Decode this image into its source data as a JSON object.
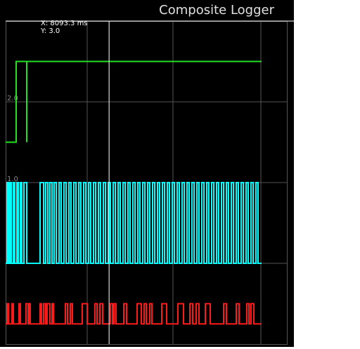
{
  "chart_data": {
    "type": "step",
    "title": "Composite Logger",
    "xlim": [
      0,
      22000
    ],
    "ylim": [
      -1,
      3
    ],
    "yticks": [
      0,
      {
        "value": 1,
        "label": "1.0"
      },
      {
        "value": 2,
        "label": "2.0"
      }
    ],
    "grid": true,
    "cursor": {
      "x": 8093.3,
      "y": 3,
      "x_label": "X: 8093.3 ms",
      "y_label": "Y: 3.0"
    },
    "series": [
      {
        "color": "#22e022",
        "x": [
          0,
          825,
          1650,
          1650,
          20020
        ],
        "values": [
          1.5,
          2.5,
          1.5,
          2.5,
          2.5
        ]
      },
      {
        "color": "#00ffff",
        "x": [
          0,
          110,
          220,
          330,
          440,
          605,
          715,
          880,
          990,
          1155,
          1265,
          1430,
          1650,
          2695,
          2970,
          3135,
          3300,
          3465,
          3630,
          3795,
          3960,
          4180,
          4345,
          4565,
          4730,
          4950,
          5115,
          5335,
          5500,
          5720,
          5885,
          6105,
          6270,
          6490,
          6655,
          6875,
          7040,
          7260,
          7425,
          7645,
          7810,
          8030,
          8195,
          8415,
          8580,
          8800,
          8965,
          9185,
          9350,
          9570,
          9735,
          9955,
          10120,
          10340,
          10505,
          10725,
          10890,
          11110,
          11275,
          11495,
          11660,
          11880,
          12045,
          12265,
          12430,
          12650,
          12815,
          13035,
          13200,
          13420,
          13585,
          13805,
          13970,
          14190,
          14355,
          14575,
          14740,
          14960,
          15125,
          15345,
          15510,
          15730,
          15895,
          16115,
          16280,
          16500,
          16665,
          16885,
          17050,
          17270,
          17435,
          17655,
          17820,
          18040,
          18205,
          18425,
          18590,
          18810,
          18975,
          19195,
          19360,
          19580,
          19745,
          20020
        ],
        "values": [
          0,
          1,
          0,
          1,
          0,
          1,
          0,
          1,
          0,
          1,
          0,
          1,
          0,
          1,
          0,
          1,
          0,
          1,
          0,
          1,
          0,
          1,
          0,
          1,
          0,
          1,
          0,
          1,
          0,
          1,
          0,
          1,
          0,
          1,
          0,
          1,
          0,
          1,
          0,
          1,
          0,
          1,
          0,
          1,
          0,
          1,
          0,
          1,
          0,
          1,
          0,
          1,
          0,
          1,
          0,
          1,
          0,
          1,
          0,
          1,
          0,
          1,
          0,
          1,
          0,
          1,
          0,
          1,
          0,
          1,
          0,
          1,
          0,
          1,
          0,
          1,
          0,
          1,
          0,
          1,
          0,
          1,
          0,
          1,
          0,
          1,
          0,
          1,
          0,
          1,
          0,
          1,
          0,
          1,
          0,
          1,
          0,
          1,
          0,
          1,
          0,
          1,
          0,
          0
        ]
      },
      {
        "color": "#ff1a1a",
        "x": [
          0,
          110,
          220,
          495,
          605,
          1045,
          1155,
          1595,
          1760,
          1815,
          1925,
          2695,
          2805,
          2970,
          3135,
          3245,
          3465,
          3630,
          3740,
          4675,
          4840,
          5060,
          5225,
          5995,
          6380,
          6985,
          7150,
          7370,
          7590,
          8195,
          8360,
          8470,
          8635,
          9240,
          9460,
          10285,
          10615,
          10835,
          11000,
          11275,
          11440,
          12210,
          12595,
          13475,
          13915,
          14410,
          14630,
          14905,
          15125,
          15620,
          16005,
          17050,
          17270,
          18040,
          18260,
          18865,
          19030,
          19195,
          19415,
          20020
        ],
        "values": [
          -0.75,
          -0.5,
          -0.75,
          -0.5,
          -0.75,
          -0.5,
          -0.75,
          -0.5,
          -0.75,
          -0.5,
          -0.75,
          -0.5,
          -0.75,
          -0.5,
          -0.75,
          -0.5,
          -0.75,
          -0.5,
          -0.75,
          -0.5,
          -0.75,
          -0.5,
          -0.75,
          -0.5,
          -0.75,
          -0.5,
          -0.75,
          -0.5,
          -0.75,
          -0.5,
          -0.75,
          -0.5,
          -0.75,
          -0.5,
          -0.75,
          -0.5,
          -0.75,
          -0.5,
          -0.75,
          -0.5,
          -0.75,
          -0.5,
          -0.75,
          -0.5,
          -0.75,
          -0.5,
          -0.75,
          -0.5,
          -0.75,
          -0.5,
          -0.75,
          -0.5,
          -0.75,
          -0.5,
          -0.75,
          -0.5,
          -0.75,
          -0.5,
          -0.75,
          -0.75
        ]
      }
    ]
  }
}
